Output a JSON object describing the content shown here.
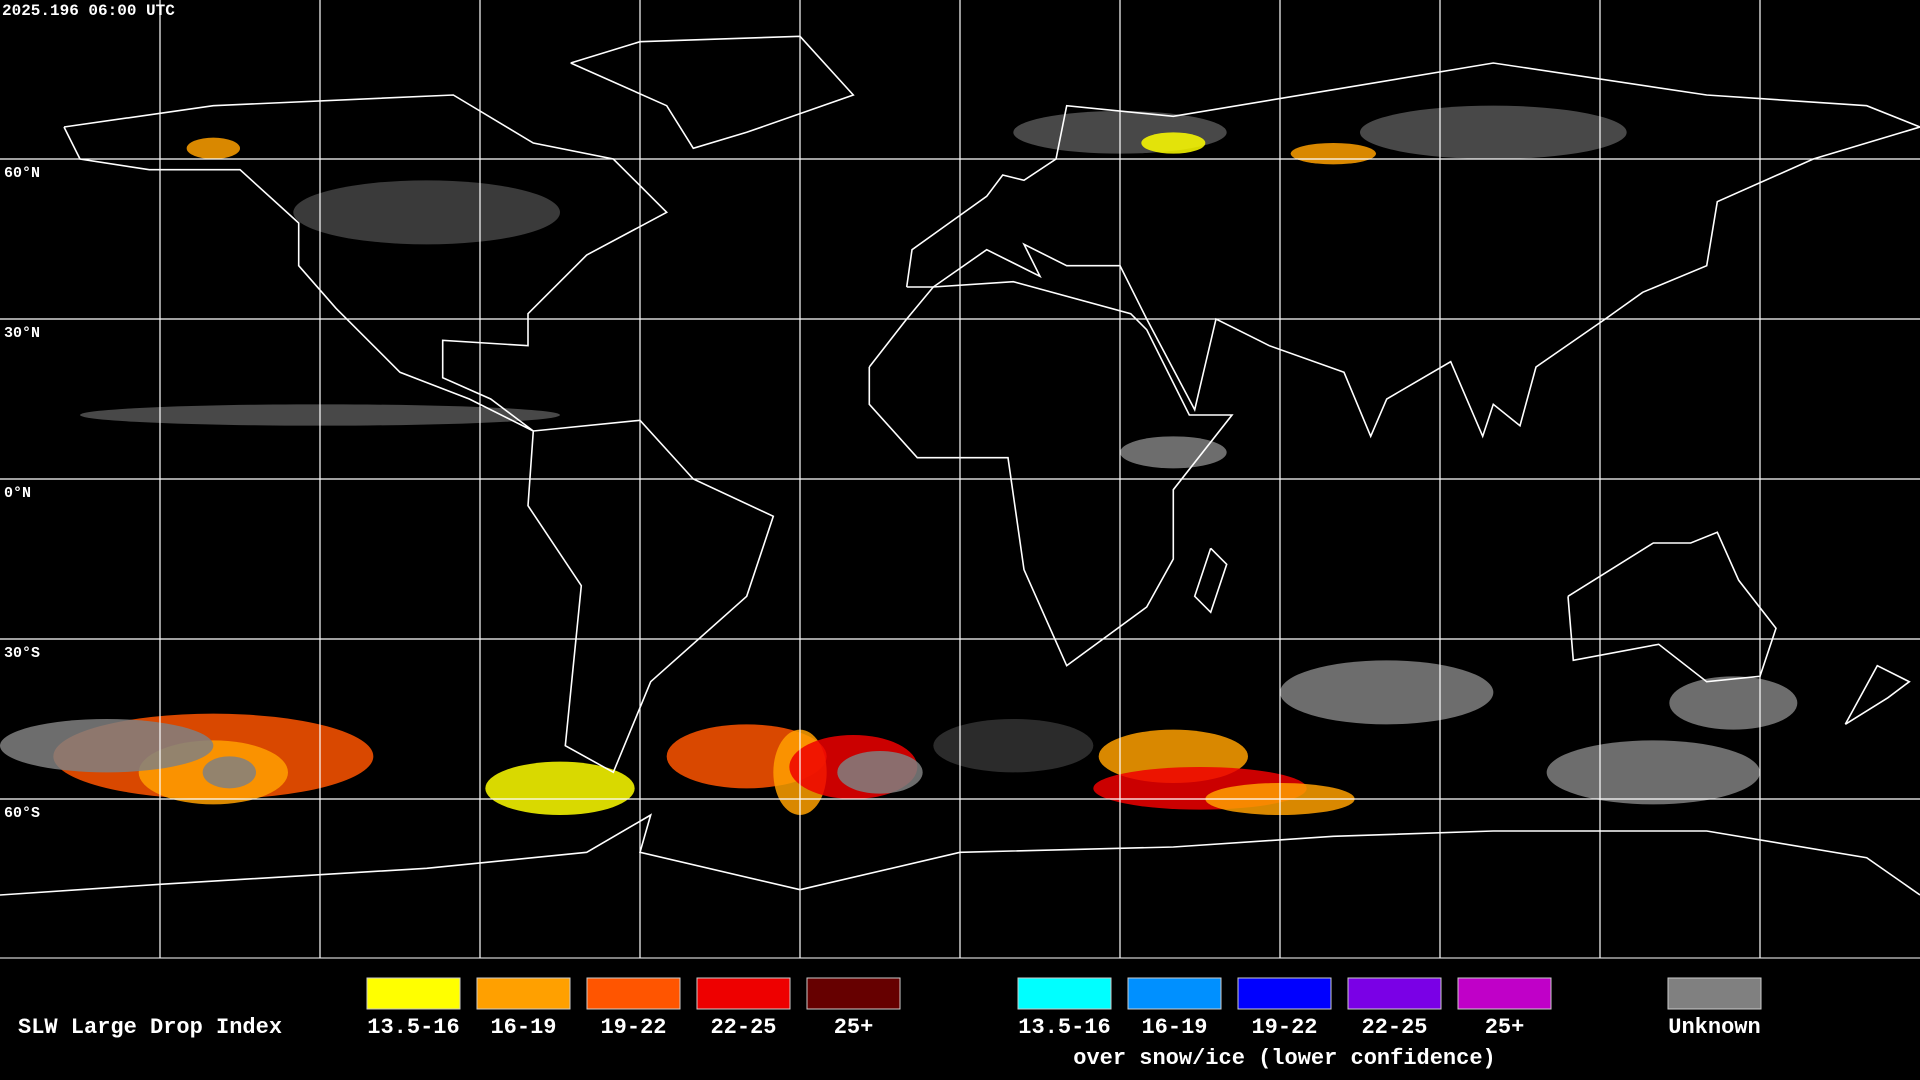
{
  "header": {
    "timestamp": "2025.196 06:00 UTC"
  },
  "map": {
    "latitude_labels": [
      "60°N",
      "30°N",
      "0°N",
      "30°S",
      "60°S"
    ]
  },
  "legend": {
    "title": "SLW Large Drop Index",
    "groups": [
      {
        "items": [
          {
            "label": "13.5-16",
            "color": "#ffff00"
          },
          {
            "label": "16-19",
            "color": "#ffa000"
          },
          {
            "label": "19-22",
            "color": "#ff5500"
          },
          {
            "label": "22-25",
            "color": "#ee0000"
          },
          {
            "label": "25+",
            "color": "#660000"
          }
        ]
      },
      {
        "items": [
          {
            "label": "13.5-16",
            "color": "#00ffff"
          },
          {
            "label": "16-19",
            "color": "#0090ff"
          },
          {
            "label": "19-22",
            "color": "#0000ff"
          },
          {
            "label": "22-25",
            "color": "#7a00e6"
          },
          {
            "label": "25+",
            "color": "#c000c8"
          }
        ],
        "caption": "over snow/ice (lower confidence)"
      }
    ],
    "unknown": {
      "label": "Unknown",
      "color": "#808080"
    }
  }
}
